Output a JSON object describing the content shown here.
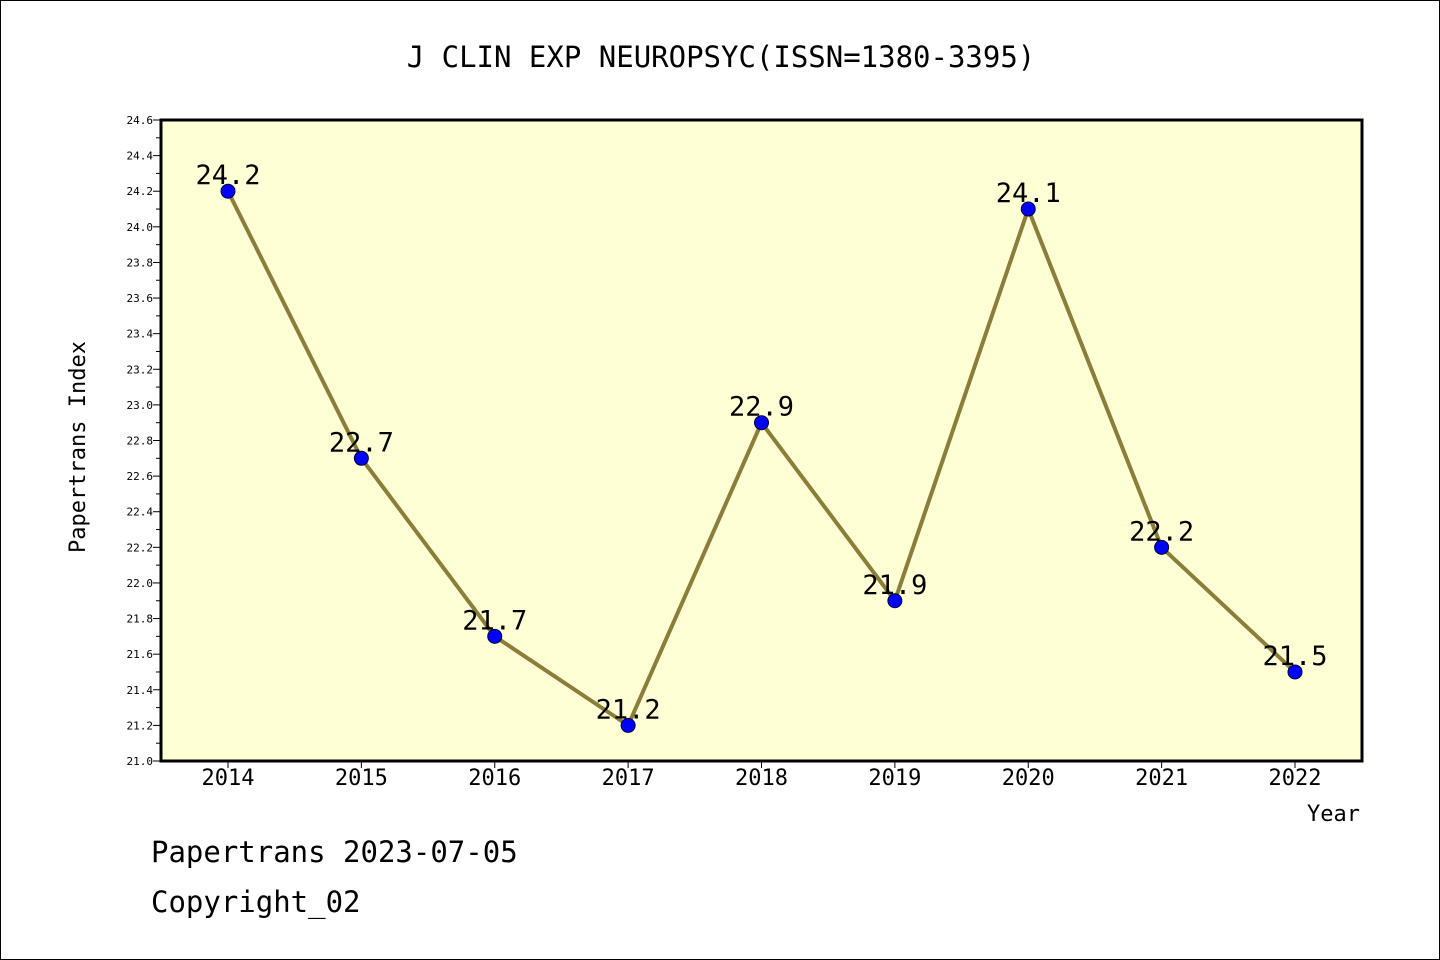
{
  "chart_data": {
    "type": "line",
    "title": "J CLIN EXP NEUROPSYC(ISSN=1380-3395)",
    "xlabel": "Year",
    "ylabel": "Papertrans Index",
    "categories": [
      "2014",
      "2015",
      "2016",
      "2017",
      "2018",
      "2019",
      "2020",
      "2021",
      "2022"
    ],
    "series": [
      {
        "values": [
          24.2,
          22.7,
          21.7,
          21.2,
          22.9,
          21.9,
          24.1,
          22.2,
          21.5
        ],
        "labels": [
          "24.2",
          "22.7",
          "21.7",
          "21.2",
          "22.9",
          "21.9",
          "24.1",
          "22.2",
          "21.5"
        ]
      }
    ],
    "ylim": [
      21.0,
      24.6
    ],
    "yticks": [
      "21.0",
      "21.2",
      "21.4",
      "21.6",
      "21.8",
      "22.0",
      "22.2",
      "22.4",
      "22.6",
      "22.8",
      "23.0",
      "23.2",
      "23.4",
      "23.6",
      "23.8",
      "24.0",
      "24.2",
      "24.4",
      "24.6"
    ],
    "grid": false,
    "legend": "none",
    "colors": {
      "plot_background": "#ffffd6",
      "line": "#8b7d3a",
      "marker": "#0000ff"
    }
  },
  "footer": {
    "source": "Papertrans 2023-07-05",
    "copyright": "Copyright_02"
  }
}
